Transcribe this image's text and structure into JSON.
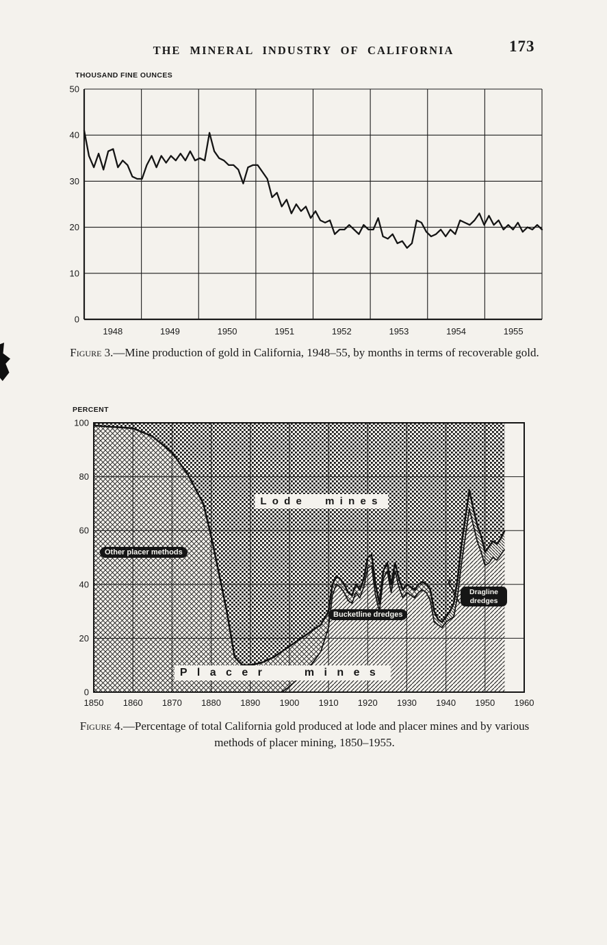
{
  "page": {
    "header_title": "THE MINERAL INDUSTRY OF CALIFORNIA",
    "page_number": "173"
  },
  "figure3": {
    "y_axis_unit": "THOUSAND FINE OUNCES",
    "caption_label": "Figure 3.",
    "caption_text": "—Mine production of gold in California, 1948–55, by months in terms of recoverable gold."
  },
  "figure4": {
    "y_axis_unit": "PERCENT",
    "caption_label": "Figure 4.",
    "caption_text": "—Percentage of total California gold produced at lode and placer mines and by various methods of placer mining, 1850–1955.",
    "labels": {
      "lode": "Lode mines",
      "placer": "Placer mines",
      "other_placer": "Other placer methods",
      "bucketline": "Bucketline dredges",
      "dragline": "Dragline dredges"
    }
  },
  "chart_data": [
    {
      "type": "line",
      "title": "Mine production of gold in California, 1948-55, by months, in terms of recoverable gold",
      "ylabel": "THOUSAND FINE OUNCES",
      "ylim": [
        0,
        50
      ],
      "yticks": [
        0,
        10,
        20,
        30,
        40,
        50
      ],
      "x_unit": "month",
      "categories_years": [
        1948,
        1949,
        1950,
        1951,
        1952,
        1953,
        1954,
        1955
      ],
      "grid": "on",
      "legend": "none",
      "values_monthly": [
        41,
        35.5,
        33,
        36,
        32.5,
        36.5,
        37,
        33,
        34.5,
        33.5,
        31,
        30.5,
        30.5,
        33.5,
        35.5,
        33,
        35.5,
        34,
        35.5,
        34.5,
        36,
        34.5,
        36.5,
        34.5,
        35,
        34.5,
        40.5,
        36.5,
        35,
        34.5,
        33.5,
        33.5,
        32.5,
        29.5,
        33,
        33.5,
        33.5,
        32,
        30.5,
        26.5,
        27.5,
        24.5,
        26,
        23,
        25,
        23.5,
        24.5,
        22,
        23.5,
        21.5,
        21,
        21.5,
        18.5,
        19.5,
        19.5,
        20.5,
        19.5,
        18.5,
        20.5,
        19.5,
        19.5,
        22,
        18,
        17.5,
        18.5,
        16.5,
        17,
        15.5,
        16.5,
        21.5,
        21,
        19,
        18,
        18.5,
        19.5,
        18,
        19.5,
        18.5,
        21.5,
        21,
        20.5,
        21.5,
        23,
        20.5,
        22.5,
        20.5,
        21.5,
        19.5,
        20.5,
        19.5,
        21,
        19,
        20,
        19.5,
        20.5,
        19.5
      ]
    },
    {
      "type": "area",
      "title": "Percentage of total California gold produced at lode and placer mines and by various methods of placer mining, 1850-1955",
      "ylabel": "PERCENT",
      "ylim": [
        0,
        100
      ],
      "yticks": [
        0,
        20,
        40,
        60,
        80,
        100
      ],
      "xlim": [
        1850,
        1960
      ],
      "xticks": [
        1850,
        1860,
        1870,
        1880,
        1890,
        1900,
        1910,
        1920,
        1930,
        1940,
        1950,
        1960
      ],
      "data_end_year": 1955,
      "dragline_start_year": 1936,
      "grid": "on",
      "regions": [
        "Lode mines",
        "Placer mines",
        "Other placer methods",
        "Bucketline dredges",
        "Dragline dredges"
      ],
      "series": [
        {
          "name": "Placer mines - percent of total California gold",
          "x": [
            1850,
            1855,
            1860,
            1865,
            1870,
            1874,
            1878,
            1880,
            1882,
            1884,
            1886,
            1888,
            1890,
            1893,
            1896,
            1900,
            1903,
            1906,
            1908,
            1910,
            1911,
            1912,
            1913,
            1914,
            1915,
            1916,
            1917,
            1918,
            1919,
            1920,
            1921,
            1922,
            1923,
            1924,
            1925,
            1926,
            1927,
            1928,
            1929,
            1930,
            1931,
            1932,
            1933,
            1934,
            1935,
            1936,
            1937,
            1938,
            1939,
            1940,
            1941,
            1942,
            1943,
            1944,
            1945,
            1946,
            1947,
            1948,
            1949,
            1950,
            1951,
            1952,
            1953,
            1954,
            1955
          ],
          "y": [
            99,
            98.5,
            98,
            95,
            89,
            81,
            70,
            58,
            44,
            30,
            13,
            10,
            10,
            11,
            13,
            17,
            20,
            23,
            25,
            30,
            40,
            43,
            42,
            40,
            37,
            36,
            40,
            38,
            42,
            50,
            51,
            40,
            33,
            45,
            48,
            40,
            48,
            42,
            38,
            40,
            39,
            38,
            40,
            41,
            40,
            38,
            30,
            27,
            26,
            28,
            30,
            33,
            42,
            55,
            65,
            75,
            68,
            62,
            58,
            52,
            54,
            56,
            55,
            57,
            60
          ]
        },
        {
          "name": "Bucketline dredges - percent of total California gold",
          "x": [
            1898,
            1900,
            1903,
            1906,
            1908,
            1910,
            1911,
            1912,
            1913,
            1914,
            1915,
            1916,
            1917,
            1918,
            1919,
            1920,
            1921,
            1922,
            1923,
            1924,
            1925,
            1926,
            1927,
            1928,
            1929,
            1930,
            1931,
            1932,
            1933,
            1934,
            1935,
            1936,
            1937,
            1938,
            1939,
            1940,
            1941,
            1942,
            1943,
            1944,
            1945,
            1946,
            1947,
            1948,
            1949,
            1950,
            1951,
            1952,
            1953,
            1954,
            1955
          ],
          "y": [
            0,
            2,
            6,
            11,
            15,
            24,
            36,
            40,
            39,
            37,
            34,
            33,
            37,
            35,
            39,
            46,
            47,
            36,
            30,
            42,
            45,
            37,
            45,
            39,
            35,
            37,
            36,
            35,
            37,
            38,
            37,
            34,
            26,
            25,
            24,
            26,
            27,
            28,
            36,
            48,
            58,
            68,
            62,
            56,
            52,
            47,
            48,
            50,
            49,
            51,
            53
          ]
        }
      ]
    }
  ]
}
